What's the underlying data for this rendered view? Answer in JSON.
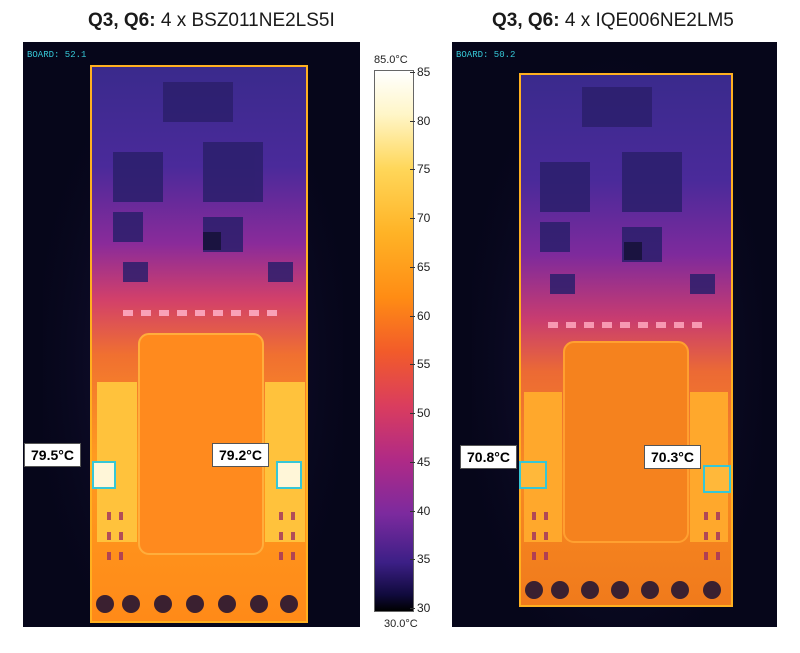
{
  "left_panel": {
    "title_bold": "Q3, Q6:",
    "title_rest": " 4 x BSZ011NE2LS5I",
    "board_label": "BOARD: 52.1",
    "hotspot_left": "79.5°C",
    "hotspot_right": "79.2°C"
  },
  "right_panel": {
    "title_bold": "Q3, Q6:",
    "title_rest": " 4 x IQE006NE2LM5",
    "board_label": "BOARD: 50.2",
    "hotspot_left": "70.8°C",
    "hotspot_right": "70.3°C"
  },
  "scale": {
    "max_label": "85.0°C",
    "min_label": "30.0°C",
    "ticks": [
      "85",
      "80",
      "75",
      "70",
      "65",
      "60",
      "55",
      "50",
      "45",
      "40",
      "35",
      "30"
    ]
  },
  "colors": {
    "roi_box": "#36c7d6",
    "board_outline": "#ffb020"
  }
}
